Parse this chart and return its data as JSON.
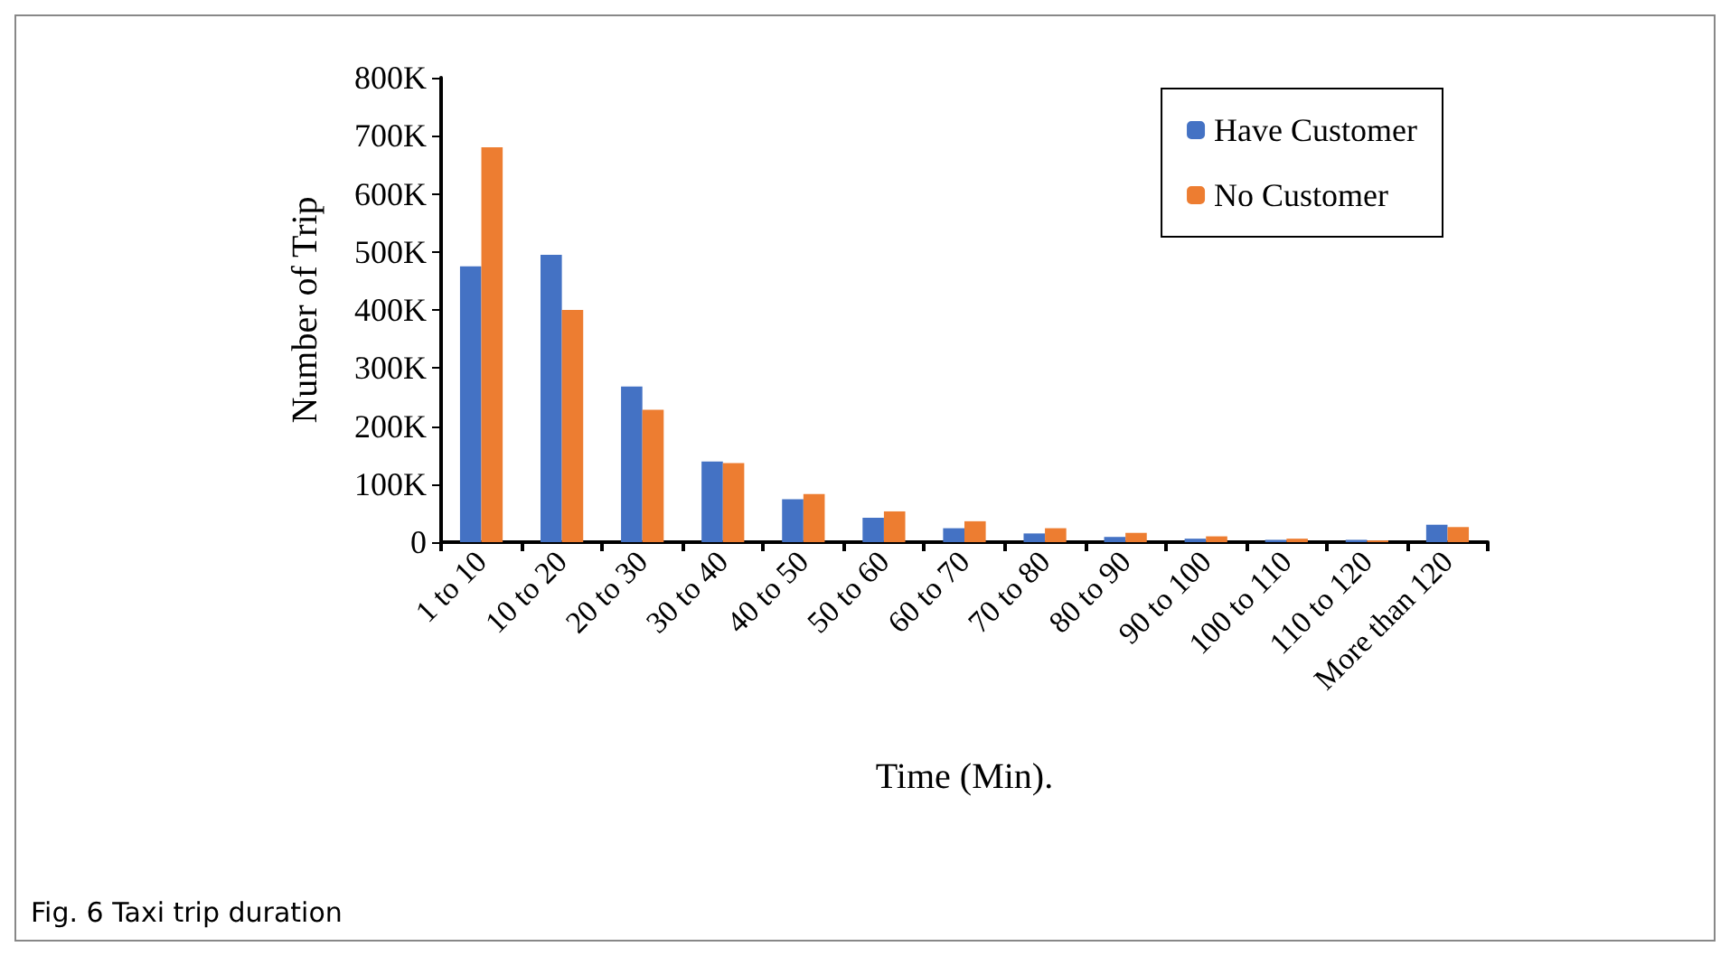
{
  "chart_data": {
    "type": "bar",
    "xlabel": "Time (Min).",
    "ylabel": "Number of Trip",
    "categories": [
      "1 to 10",
      "10 to 20",
      "20 to 30",
      "30 to 40",
      "40 to 50",
      "50 to 60",
      "60 to 70",
      "70 to 80",
      "80 to 90",
      "90 to 100",
      "100 to 110",
      "110 to 120",
      "More than 120"
    ],
    "series": [
      {
        "name": "Have Customer",
        "color": "#4472c4",
        "values": [
          475000,
          495000,
          268000,
          139000,
          74000,
          42000,
          24000,
          15000,
          9000,
          6000,
          4000,
          4000,
          30000
        ]
      },
      {
        "name": "No Customer",
        "color": "#ed7d31",
        "values": [
          680000,
          400000,
          228000,
          136000,
          83000,
          53000,
          36000,
          24000,
          16000,
          10000,
          6000,
          3000,
          26000
        ]
      }
    ],
    "ylim": [
      0,
      800000
    ],
    "yticks": [
      {
        "value": 0,
        "label": "0"
      },
      {
        "value": 100000,
        "label": "100K"
      },
      {
        "value": 200000,
        "label": "200K"
      },
      {
        "value": 300000,
        "label": "300K"
      },
      {
        "value": 400000,
        "label": "400K"
      },
      {
        "value": 500000,
        "label": "500K"
      },
      {
        "value": 600000,
        "label": "600K"
      },
      {
        "value": 700000,
        "label": "700K"
      },
      {
        "value": 800000,
        "label": "800K"
      }
    ],
    "grid": false,
    "legend": "top right",
    "annotations": [
      "Fig. 6 Taxi trip duration"
    ]
  }
}
